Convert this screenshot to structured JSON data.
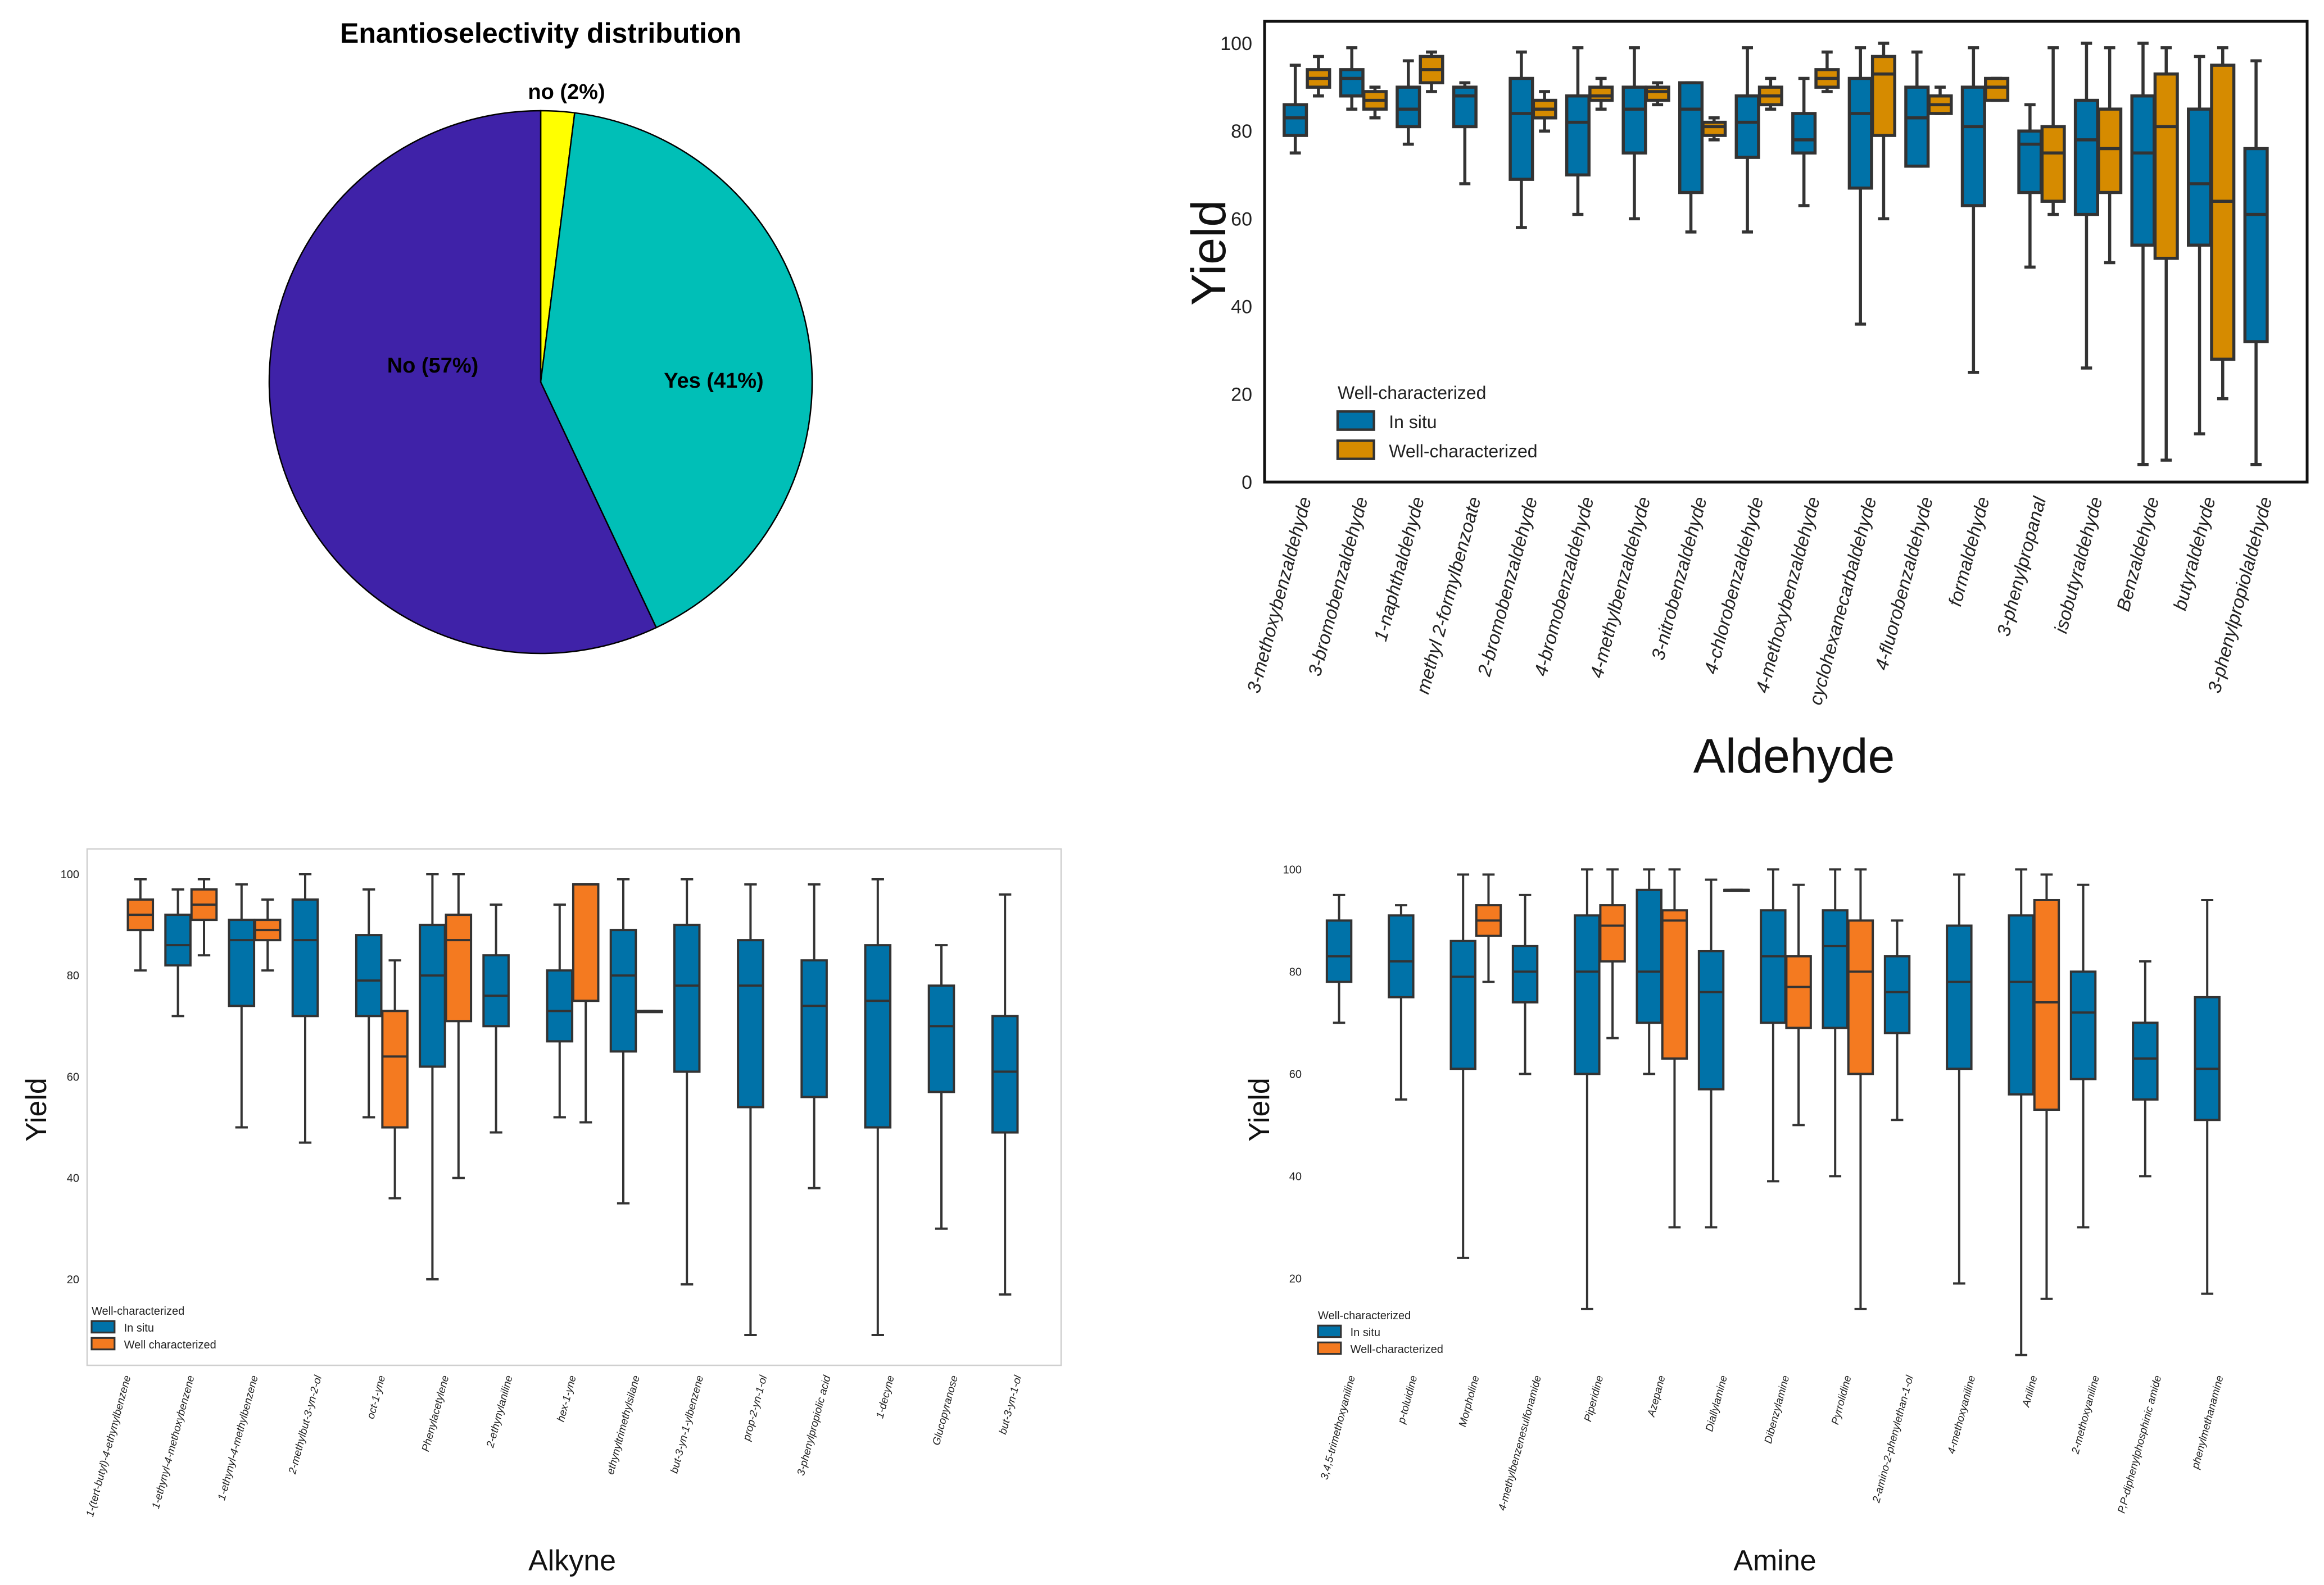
{
  "colors": {
    "pie_no": "#3f22a8",
    "pie_yes": "#00bfb7",
    "pie_small": "#ffff00",
    "insitu": "#0072a8",
    "well_aldehyde": "#d68b00",
    "well_orange": "#f47a20",
    "axis": "#111111",
    "whisker": "#333333"
  },
  "chart_data": [
    {
      "id": "pie",
      "type": "pie",
      "title": "Enantioselectivity distribution",
      "slices": [
        {
          "label": "No (57%)",
          "value": 57,
          "color_key": "pie_no"
        },
        {
          "label": "Yes (41%)",
          "value": 41,
          "color_key": "pie_yes"
        },
        {
          "label": "no (2%)",
          "value": 2,
          "color_key": "pie_small"
        }
      ]
    },
    {
      "id": "aldehyde",
      "type": "box",
      "xlabel": "Aldehyde",
      "ylabel": "Yield",
      "ylim": [
        0,
        105
      ],
      "yticks": [
        0,
        20,
        40,
        60,
        80,
        100
      ],
      "well_color_key": "well_aldehyde",
      "frame": true,
      "legend": {
        "title": "Well-characterized",
        "entries": [
          "In situ",
          "Well-characterized"
        ]
      },
      "categories": [
        "3-methoxybenzaldehyde",
        "3-bromobenzaldehyde",
        "1-naphthaldehyde",
        "methyl 2-formylbenzoate",
        "2-bromobenzaldehyde",
        "4-bromobenzaldehyde",
        "4-methylbenzaldehyde",
        "3-nitrobenzaldehyde",
        "4-chlorobenzaldehyde",
        "4-methoxybenzaldehyde",
        "cyclohexanecarbaldehyde",
        "4-fluorobenzaldehyde",
        "formaldehyde",
        "3-phenylpropanal",
        "isobutyraldehyde",
        "Benzaldehyde",
        "butyraldehyde",
        "3-phenylpropiolaldehyde"
      ],
      "series": [
        {
          "name": "In situ",
          "boxes": [
            [
              75,
              79,
              83,
              86,
              95
            ],
            [
              85,
              88,
              92,
              94,
              99
            ],
            [
              77,
              81,
              85,
              90,
              96
            ],
            [
              68,
              81,
              88,
              90,
              91
            ],
            [
              58,
              69,
              84,
              92,
              98
            ],
            [
              61,
              70,
              82,
              88,
              99
            ],
            [
              60,
              75,
              85,
              90,
              99
            ],
            [
              57,
              66,
              85,
              91,
              91
            ],
            [
              57,
              74,
              82,
              88,
              99
            ],
            [
              63,
              75,
              78,
              84,
              92
            ],
            [
              36,
              67,
              84,
              92,
              99
            ],
            [
              72,
              72,
              83,
              90,
              98
            ],
            [
              25,
              63,
              81,
              90,
              99
            ],
            [
              49,
              66,
              77,
              80,
              86
            ],
            [
              26,
              61,
              78,
              87,
              100
            ],
            [
              4,
              54,
              75,
              88,
              100
            ],
            [
              11,
              54,
              68,
              85,
              97
            ],
            [
              4,
              32,
              61,
              76,
              96
            ]
          ]
        },
        {
          "name": "Well-characterized",
          "boxes": [
            [
              88,
              90,
              92,
              94,
              97
            ],
            [
              83,
              85,
              87,
              89,
              90
            ],
            [
              89,
              91,
              94,
              97,
              98
            ],
            null,
            [
              80,
              83,
              85,
              87,
              89
            ],
            [
              85,
              87,
              88,
              90,
              92
            ],
            [
              86,
              87,
              89,
              90,
              91
            ],
            [
              78,
              79,
              81,
              82,
              83
            ],
            [
              85,
              86,
              88,
              90,
              92
            ],
            [
              89,
              90,
              92,
              94,
              98
            ],
            [
              60,
              79,
              93,
              97,
              100
            ],
            [
              84,
              84,
              86,
              88,
              90
            ],
            [
              87,
              87,
              90,
              92,
              92
            ],
            [
              61,
              64,
              75,
              81,
              99
            ],
            [
              50,
              66,
              76,
              85,
              99
            ],
            [
              5,
              51,
              81,
              93,
              99
            ],
            [
              19,
              28,
              64,
              95,
              99
            ],
            null
          ]
        }
      ]
    },
    {
      "id": "alkyne",
      "type": "box",
      "xlabel": "Alkyne",
      "ylabel": "Yield",
      "ylim": [
        3,
        105
      ],
      "yticks": [
        20,
        40,
        60,
        80,
        100
      ],
      "well_color_key": "well_orange",
      "frame": true,
      "legend": {
        "title": "Well-characterized",
        "entries": [
          "In situ",
          "Well characterized"
        ]
      },
      "categories": [
        "1-(tert-butyl)-4-ethynylbenzene",
        "1-ethynyl-4-methoxybenzene",
        "1-ethynyl-4-methylbenzene",
        "2-methylbut-3-yn-2-ol",
        "oct-1-yne",
        "Phenylacetylene",
        "2-ethynylaniline",
        "hex-1-yne",
        "ethynyltrimethylsilane",
        "but-3-yn-1-ylbenzene",
        "prop-2-yn-1-ol",
        "3-phenylpropiolic acid",
        "1-decyne",
        "Glucopyranose",
        "but-3-yn-1-ol"
      ],
      "series": [
        {
          "name": "In situ",
          "boxes": [
            null,
            [
              72,
              82,
              86,
              92,
              97
            ],
            [
              50,
              74,
              87,
              91,
              98
            ],
            [
              47,
              72,
              87,
              95,
              100
            ],
            [
              52,
              72,
              79,
              88,
              97
            ],
            [
              20,
              62,
              80,
              90,
              100
            ],
            [
              49,
              70,
              76,
              84,
              94
            ],
            [
              52,
              67,
              73,
              81,
              94
            ],
            [
              35,
              65,
              80,
              89,
              99
            ],
            [
              19,
              61,
              78,
              90,
              99
            ],
            [
              9,
              54,
              78,
              87,
              98
            ],
            [
              38,
              56,
              74,
              83,
              98
            ],
            [
              9,
              50,
              75,
              86,
              99
            ],
            [
              30,
              57,
              70,
              78,
              86
            ],
            [
              17,
              49,
              61,
              72,
              96
            ]
          ]
        },
        {
          "name": "Well characterized",
          "boxes": [
            [
              81,
              89,
              92,
              95,
              99
            ],
            [
              84,
              91,
              94,
              97,
              99
            ],
            [
              81,
              87,
              89,
              91,
              95
            ],
            null,
            [
              36,
              50,
              64,
              73,
              83
            ],
            [
              40,
              71,
              87,
              92,
              100
            ],
            null,
            [
              51,
              75,
              98,
              98,
              98
            ],
            [
              73,
              73,
              73,
              73,
              73
            ],
            null,
            null,
            null,
            null,
            null,
            null
          ]
        }
      ]
    },
    {
      "id": "amine",
      "type": "box",
      "xlabel": "Amine",
      "ylabel": "Yield",
      "ylim": [
        3,
        104
      ],
      "yticks": [
        20,
        40,
        60,
        80,
        100
      ],
      "well_color_key": "well_orange",
      "frame": false,
      "legend": {
        "title": "Well-characterized",
        "entries": [
          "In situ",
          "Well-characterized"
        ]
      },
      "categories": [
        "3,4,5-trimethoxyaniline",
        "p-toluidine",
        "Morpholine",
        "4-methylbenzenesulfonamide",
        "Piperidine",
        "Azepane",
        "Diallylamine",
        "Dibenzylamine",
        "Pyrrolidine",
        "2-amino-2-phenylethan-1-ol",
        "4-methoxyaniline",
        "Aniline",
        "2-methoxyaniline",
        "P,P-diphenylphosphinic amide",
        "phenylmethanamine"
      ],
      "series": [
        {
          "name": "In situ",
          "boxes": [
            [
              70,
              78,
              83,
              90,
              95
            ],
            [
              55,
              75,
              82,
              91,
              93
            ],
            [
              24,
              61,
              79,
              86,
              99
            ],
            [
              60,
              74,
              80,
              85,
              95
            ],
            [
              14,
              60,
              80,
              91,
              100
            ],
            [
              60,
              70,
              80,
              96,
              100
            ],
            [
              30,
              57,
              76,
              84,
              98
            ],
            [
              39,
              70,
              83,
              92,
              100
            ],
            [
              40,
              69,
              85,
              92,
              100
            ],
            [
              51,
              68,
              76,
              83,
              90
            ],
            [
              19,
              61,
              78,
              89,
              99
            ],
            [
              5,
              56,
              78,
              91,
              100
            ],
            [
              30,
              59,
              72,
              80,
              97
            ],
            [
              40,
              55,
              63,
              70,
              82
            ],
            [
              17,
              51,
              61,
              75,
              94
            ]
          ]
        },
        {
          "name": "Well-characterized",
          "boxes": [
            null,
            null,
            [
              78,
              87,
              90,
              93,
              99
            ],
            null,
            [
              67,
              82,
              89,
              93,
              100
            ],
            [
              30,
              63,
              90,
              92,
              100
            ],
            [
              96,
              96,
              96,
              96,
              96
            ],
            [
              50,
              69,
              77,
              83,
              97
            ],
            [
              14,
              60,
              80,
              90,
              100
            ],
            null,
            null,
            [
              16,
              53,
              74,
              94,
              99
            ],
            null,
            null,
            null
          ]
        }
      ]
    }
  ]
}
